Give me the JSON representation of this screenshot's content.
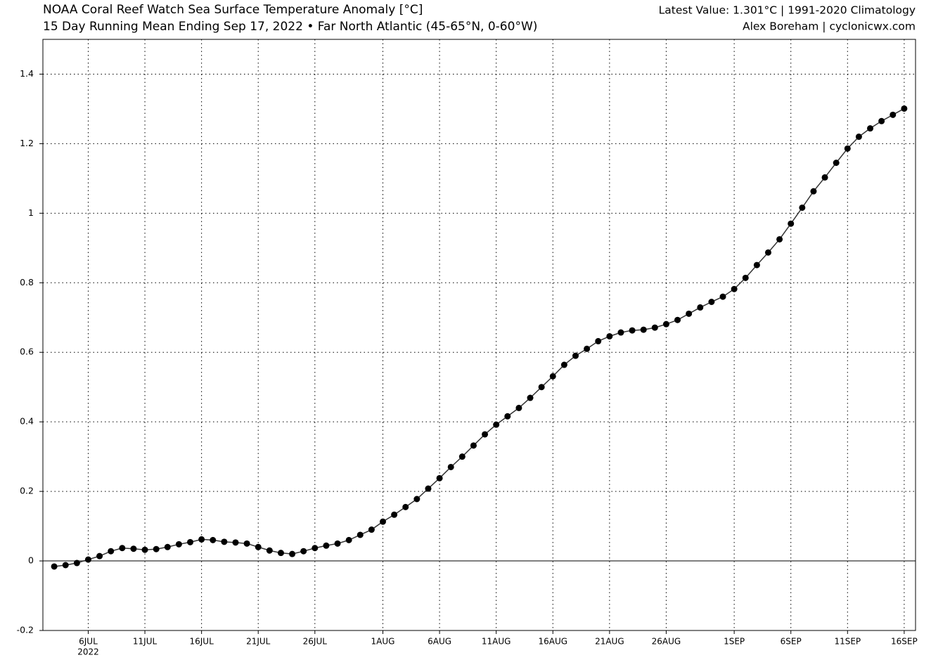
{
  "chart_data": {
    "type": "line",
    "title": "NOAA Coral Reef Watch Sea Surface Temperature Anomaly [°C]",
    "subtitle": "15 Day Running Mean Ending Sep 17, 2022 • Far North Atlantic (45-65°N, 0-60°W)",
    "info": [
      "Latest Value: 1.301°C | 1991-2020 Climatology",
      "Alex Boreham | cyclonicwx.com"
    ],
    "x": [
      "2022-07-03",
      "2022-07-04",
      "2022-07-05",
      "2022-07-06",
      "2022-07-07",
      "2022-07-08",
      "2022-07-09",
      "2022-07-10",
      "2022-07-11",
      "2022-07-12",
      "2022-07-13",
      "2022-07-14",
      "2022-07-15",
      "2022-07-16",
      "2022-07-17",
      "2022-07-18",
      "2022-07-19",
      "2022-07-20",
      "2022-07-21",
      "2022-07-22",
      "2022-07-23",
      "2022-07-24",
      "2022-07-25",
      "2022-07-26",
      "2022-07-27",
      "2022-07-28",
      "2022-07-29",
      "2022-07-30",
      "2022-07-31",
      "2022-08-01",
      "2022-08-02",
      "2022-08-03",
      "2022-08-04",
      "2022-08-05",
      "2022-08-06",
      "2022-08-07",
      "2022-08-08",
      "2022-08-09",
      "2022-08-10",
      "2022-08-11",
      "2022-08-12",
      "2022-08-13",
      "2022-08-14",
      "2022-08-15",
      "2022-08-16",
      "2022-08-17",
      "2022-08-18",
      "2022-08-19",
      "2022-08-20",
      "2022-08-21",
      "2022-08-22",
      "2022-08-23",
      "2022-08-24",
      "2022-08-25",
      "2022-08-26",
      "2022-08-27",
      "2022-08-28",
      "2022-08-29",
      "2022-08-30",
      "2022-08-31",
      "2022-09-01",
      "2022-09-02",
      "2022-09-03",
      "2022-09-04",
      "2022-09-05",
      "2022-09-06",
      "2022-09-07",
      "2022-09-08",
      "2022-09-09",
      "2022-09-10",
      "2022-09-11",
      "2022-09-12",
      "2022-09-13",
      "2022-09-14",
      "2022-09-15",
      "2022-09-16"
    ],
    "series": [
      {
        "color": "#000000",
        "line_color": "#333333",
        "values": [
          -0.016,
          -0.012,
          -0.006,
          0.004,
          0.014,
          0.028,
          0.037,
          0.035,
          0.032,
          0.034,
          0.04,
          0.048,
          0.054,
          0.062,
          0.06,
          0.055,
          0.053,
          0.05,
          0.04,
          0.03,
          0.023,
          0.02,
          0.028,
          0.037,
          0.044,
          0.05,
          0.06,
          0.075,
          0.09,
          0.113,
          0.133,
          0.155,
          0.178,
          0.208,
          0.238,
          0.27,
          0.3,
          0.332,
          0.364,
          0.392,
          0.416,
          0.44,
          0.469,
          0.5,
          0.531,
          0.564,
          0.59,
          0.61,
          0.632,
          0.646,
          0.657,
          0.663,
          0.665,
          0.671,
          0.681,
          0.693,
          0.711,
          0.729,
          0.745,
          0.76,
          0.782,
          0.814,
          0.851,
          0.887,
          0.925,
          0.97,
          1.016,
          1.063,
          1.103,
          1.145,
          1.186,
          1.22,
          1.244,
          1.265,
          1.283,
          1.301
        ]
      }
    ],
    "xlim": [
      "2022-07-02",
      "2022-09-17"
    ],
    "xticks": [
      {
        "value": "2022-07-06",
        "label": "6JUL"
      },
      {
        "value": "2022-07-11",
        "label": "11JUL"
      },
      {
        "value": "2022-07-16",
        "label": "16JUL"
      },
      {
        "value": "2022-07-21",
        "label": "21JUL"
      },
      {
        "value": "2022-07-26",
        "label": "26JUL"
      },
      {
        "value": "2022-08-01",
        "label": "1AUG"
      },
      {
        "value": "2022-08-06",
        "label": "6AUG"
      },
      {
        "value": "2022-08-11",
        "label": "11AUG"
      },
      {
        "value": "2022-08-16",
        "label": "16AUG"
      },
      {
        "value": "2022-08-21",
        "label": "21AUG"
      },
      {
        "value": "2022-08-26",
        "label": "26AUG"
      },
      {
        "value": "2022-09-01",
        "label": "1SEP"
      },
      {
        "value": "2022-09-06",
        "label": "6SEP"
      },
      {
        "value": "2022-09-11",
        "label": "11SEP"
      },
      {
        "value": "2022-09-16",
        "label": "16SEP"
      }
    ],
    "x_year_label": "2022",
    "ylim": [
      -0.2,
      1.5
    ],
    "yticks": [
      -0.2,
      0,
      0.2,
      0.4,
      0.6,
      0.8,
      1,
      1.2,
      1.4
    ],
    "grid": true,
    "zero_line": true
  }
}
